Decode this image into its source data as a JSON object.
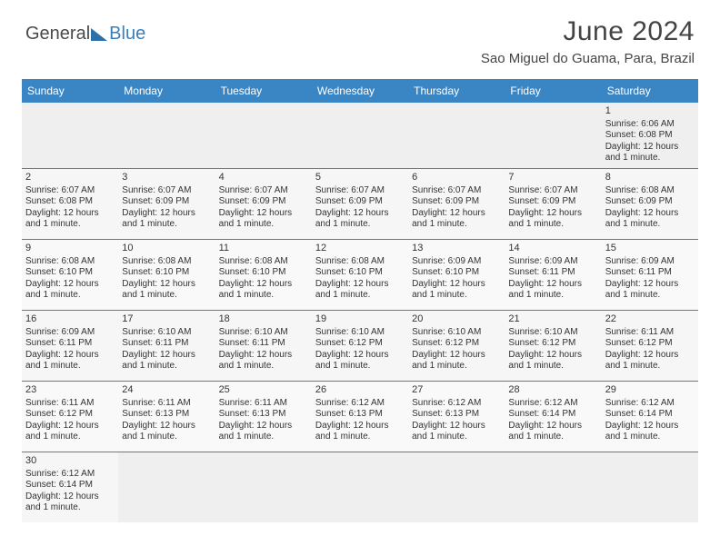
{
  "branding": {
    "logo_general": "General",
    "logo_blue": "Blue",
    "logo_shape_color": "#2b6fab",
    "logo_text_general_color": "#4a4a4a",
    "logo_text_blue_color": "#3a7fb8"
  },
  "header": {
    "title": "June 2024",
    "title_fontsize": 30,
    "title_color": "#444444",
    "location": "Sao Miguel do Guama, Para, Brazil",
    "location_fontsize": 15,
    "location_color": "#444444"
  },
  "calendar": {
    "type": "table",
    "header_bg": "#3a85c4",
    "header_text_color": "#ffffff",
    "row_border_color": "#3a85c4",
    "cell_bg": "#f6f6f6",
    "cell_bg_alt": "#f9f9f9",
    "empty_bg": "#efefef",
    "text_color": "#333333",
    "day_header_fontsize": 12,
    "daynum_fontsize": 11,
    "detail_fontsize": 10,
    "columns": [
      "Sunday",
      "Monday",
      "Tuesday",
      "Wednesday",
      "Thursday",
      "Friday",
      "Saturday"
    ],
    "weeks": [
      [
        null,
        null,
        null,
        null,
        null,
        null,
        {
          "day": "1",
          "sunrise": "Sunrise: 6:06 AM",
          "sunset": "Sunset: 6:08 PM",
          "daylight": "Daylight: 12 hours and 1 minute."
        }
      ],
      [
        {
          "day": "2",
          "sunrise": "Sunrise: 6:07 AM",
          "sunset": "Sunset: 6:08 PM",
          "daylight": "Daylight: 12 hours and 1 minute."
        },
        {
          "day": "3",
          "sunrise": "Sunrise: 6:07 AM",
          "sunset": "Sunset: 6:09 PM",
          "daylight": "Daylight: 12 hours and 1 minute."
        },
        {
          "day": "4",
          "sunrise": "Sunrise: 6:07 AM",
          "sunset": "Sunset: 6:09 PM",
          "daylight": "Daylight: 12 hours and 1 minute."
        },
        {
          "day": "5",
          "sunrise": "Sunrise: 6:07 AM",
          "sunset": "Sunset: 6:09 PM",
          "daylight": "Daylight: 12 hours and 1 minute."
        },
        {
          "day": "6",
          "sunrise": "Sunrise: 6:07 AM",
          "sunset": "Sunset: 6:09 PM",
          "daylight": "Daylight: 12 hours and 1 minute."
        },
        {
          "day": "7",
          "sunrise": "Sunrise: 6:07 AM",
          "sunset": "Sunset: 6:09 PM",
          "daylight": "Daylight: 12 hours and 1 minute."
        },
        {
          "day": "8",
          "sunrise": "Sunrise: 6:08 AM",
          "sunset": "Sunset: 6:09 PM",
          "daylight": "Daylight: 12 hours and 1 minute."
        }
      ],
      [
        {
          "day": "9",
          "sunrise": "Sunrise: 6:08 AM",
          "sunset": "Sunset: 6:10 PM",
          "daylight": "Daylight: 12 hours and 1 minute."
        },
        {
          "day": "10",
          "sunrise": "Sunrise: 6:08 AM",
          "sunset": "Sunset: 6:10 PM",
          "daylight": "Daylight: 12 hours and 1 minute."
        },
        {
          "day": "11",
          "sunrise": "Sunrise: 6:08 AM",
          "sunset": "Sunset: 6:10 PM",
          "daylight": "Daylight: 12 hours and 1 minute."
        },
        {
          "day": "12",
          "sunrise": "Sunrise: 6:08 AM",
          "sunset": "Sunset: 6:10 PM",
          "daylight": "Daylight: 12 hours and 1 minute."
        },
        {
          "day": "13",
          "sunrise": "Sunrise: 6:09 AM",
          "sunset": "Sunset: 6:10 PM",
          "daylight": "Daylight: 12 hours and 1 minute."
        },
        {
          "day": "14",
          "sunrise": "Sunrise: 6:09 AM",
          "sunset": "Sunset: 6:11 PM",
          "daylight": "Daylight: 12 hours and 1 minute."
        },
        {
          "day": "15",
          "sunrise": "Sunrise: 6:09 AM",
          "sunset": "Sunset: 6:11 PM",
          "daylight": "Daylight: 12 hours and 1 minute."
        }
      ],
      [
        {
          "day": "16",
          "sunrise": "Sunrise: 6:09 AM",
          "sunset": "Sunset: 6:11 PM",
          "daylight": "Daylight: 12 hours and 1 minute."
        },
        {
          "day": "17",
          "sunrise": "Sunrise: 6:10 AM",
          "sunset": "Sunset: 6:11 PM",
          "daylight": "Daylight: 12 hours and 1 minute."
        },
        {
          "day": "18",
          "sunrise": "Sunrise: 6:10 AM",
          "sunset": "Sunset: 6:11 PM",
          "daylight": "Daylight: 12 hours and 1 minute."
        },
        {
          "day": "19",
          "sunrise": "Sunrise: 6:10 AM",
          "sunset": "Sunset: 6:12 PM",
          "daylight": "Daylight: 12 hours and 1 minute."
        },
        {
          "day": "20",
          "sunrise": "Sunrise: 6:10 AM",
          "sunset": "Sunset: 6:12 PM",
          "daylight": "Daylight: 12 hours and 1 minute."
        },
        {
          "day": "21",
          "sunrise": "Sunrise: 6:10 AM",
          "sunset": "Sunset: 6:12 PM",
          "daylight": "Daylight: 12 hours and 1 minute."
        },
        {
          "day": "22",
          "sunrise": "Sunrise: 6:11 AM",
          "sunset": "Sunset: 6:12 PM",
          "daylight": "Daylight: 12 hours and 1 minute."
        }
      ],
      [
        {
          "day": "23",
          "sunrise": "Sunrise: 6:11 AM",
          "sunset": "Sunset: 6:12 PM",
          "daylight": "Daylight: 12 hours and 1 minute."
        },
        {
          "day": "24",
          "sunrise": "Sunrise: 6:11 AM",
          "sunset": "Sunset: 6:13 PM",
          "daylight": "Daylight: 12 hours and 1 minute."
        },
        {
          "day": "25",
          "sunrise": "Sunrise: 6:11 AM",
          "sunset": "Sunset: 6:13 PM",
          "daylight": "Daylight: 12 hours and 1 minute."
        },
        {
          "day": "26",
          "sunrise": "Sunrise: 6:12 AM",
          "sunset": "Sunset: 6:13 PM",
          "daylight": "Daylight: 12 hours and 1 minute."
        },
        {
          "day": "27",
          "sunrise": "Sunrise: 6:12 AM",
          "sunset": "Sunset: 6:13 PM",
          "daylight": "Daylight: 12 hours and 1 minute."
        },
        {
          "day": "28",
          "sunrise": "Sunrise: 6:12 AM",
          "sunset": "Sunset: 6:14 PM",
          "daylight": "Daylight: 12 hours and 1 minute."
        },
        {
          "day": "29",
          "sunrise": "Sunrise: 6:12 AM",
          "sunset": "Sunset: 6:14 PM",
          "daylight": "Daylight: 12 hours and 1 minute."
        }
      ],
      [
        {
          "day": "30",
          "sunrise": "Sunrise: 6:12 AM",
          "sunset": "Sunset: 6:14 PM",
          "daylight": "Daylight: 12 hours and 1 minute."
        },
        null,
        null,
        null,
        null,
        null,
        null
      ]
    ]
  }
}
